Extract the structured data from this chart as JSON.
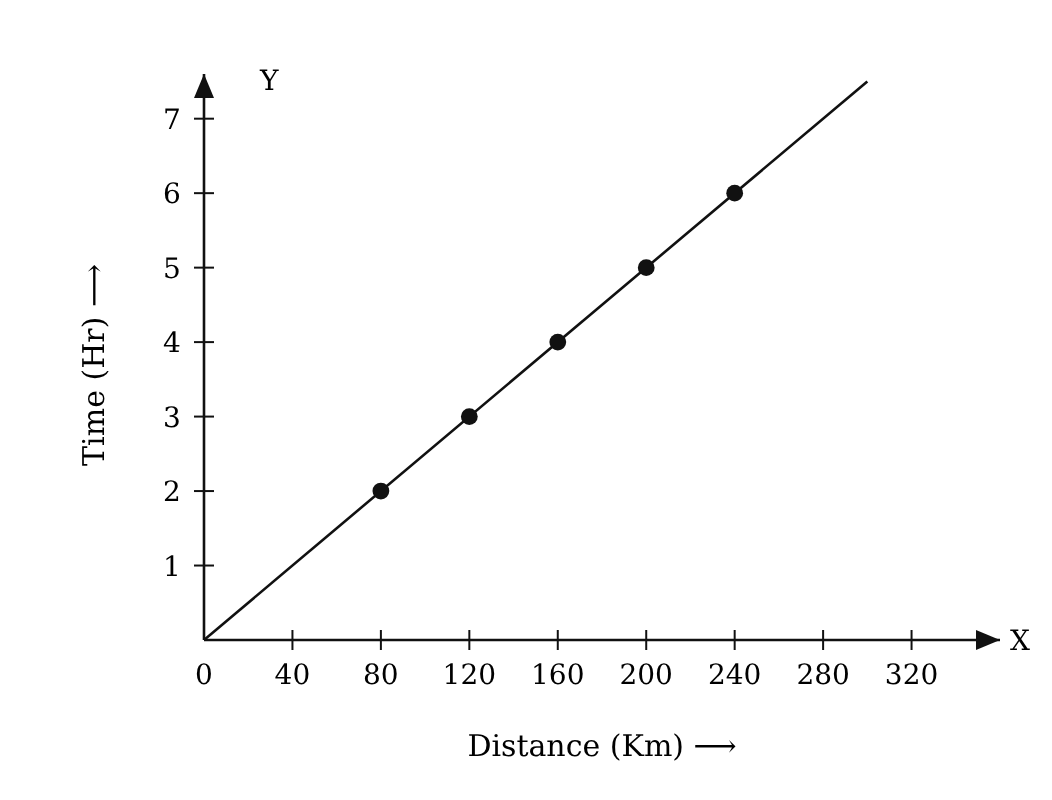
{
  "chart_data": {
    "type": "line",
    "xlabel": "Distance (Km) ⟶",
    "ylabel": "Time (Hr) ⟶",
    "annotations": [
      "X",
      "Y"
    ],
    "xlim": [
      0,
      360
    ],
    "ylim": [
      0,
      7.6
    ],
    "xticks": [
      {
        "value": 0,
        "label": "0"
      },
      40,
      80,
      120,
      160,
      200,
      240,
      280,
      320
    ],
    "yticks": [
      1,
      2,
      3,
      4,
      5,
      6,
      7
    ],
    "grid": false,
    "series": [
      {
        "type": "line",
        "color": "#111111",
        "x": [
          0,
          300
        ],
        "values": [
          0,
          7.5
        ],
        "marker": "none",
        "line_style": "solid"
      },
      {
        "type": "scatter",
        "color": "#111111",
        "x": [
          80,
          120,
          160,
          200,
          240
        ],
        "values": [
          2,
          3,
          4,
          5,
          6
        ],
        "marker": "circle"
      }
    ]
  }
}
